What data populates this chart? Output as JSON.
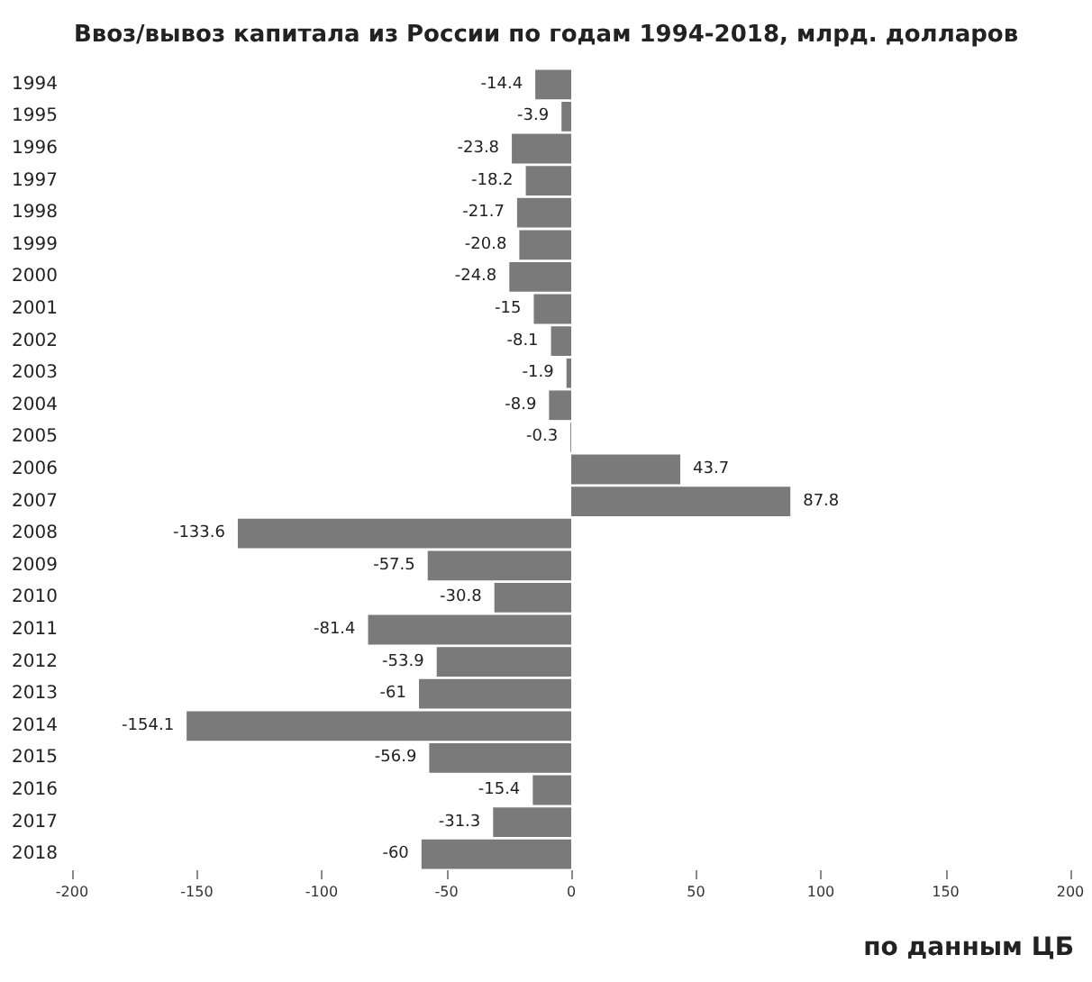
{
  "chart_data": {
    "type": "bar",
    "orientation": "horizontal",
    "title": "Ввоз/вывоз капитала из России по годам 1994-2018, млрд. долларов",
    "categories": [
      "1994",
      "1995",
      "1996",
      "1997",
      "1998",
      "1999",
      "2000",
      "2001",
      "2002",
      "2003",
      "2004",
      "2005",
      "2006",
      "2007",
      "2008",
      "2009",
      "2010",
      "2011",
      "2012",
      "2013",
      "2014",
      "2015",
      "2016",
      "2017",
      "2018"
    ],
    "values": [
      -14.4,
      -3.9,
      -23.8,
      -18.2,
      -21.7,
      -20.8,
      -24.8,
      -15,
      -8.1,
      -1.9,
      -8.9,
      -0.3,
      43.7,
      87.8,
      -133.6,
      -57.5,
      -30.8,
      -81.4,
      -53.9,
      -61,
      -154.1,
      -56.9,
      -15.4,
      -31.3,
      -60
    ],
    "color": "#7a7a7a",
    "xlim": [
      -200,
      200
    ],
    "xticks": [
      -200,
      -150,
      -100,
      -50,
      0,
      50,
      100,
      150,
      200
    ],
    "grid": false,
    "data_labels": true,
    "annotations": [
      "по данным ЦБ"
    ]
  }
}
